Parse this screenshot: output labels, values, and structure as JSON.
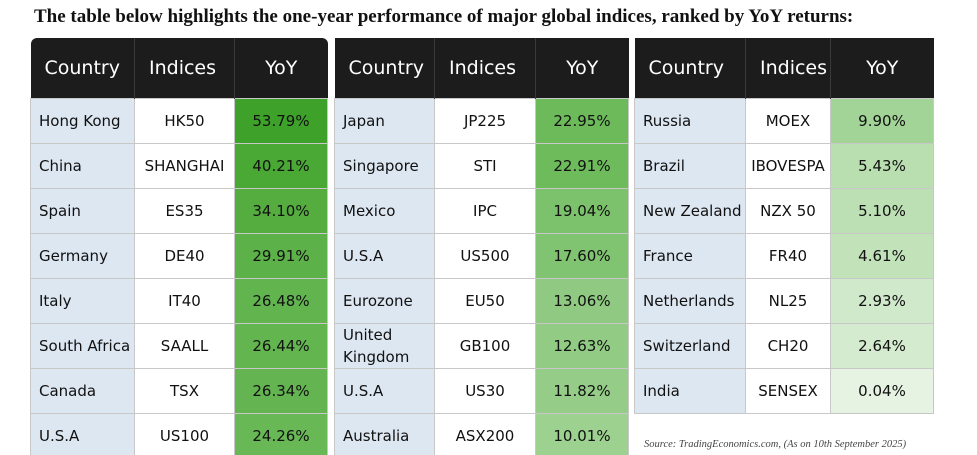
{
  "title": "The table below highlights the one-year performance of major global indices, ranked by YoY returns:",
  "headers": {
    "country": "Country",
    "indices": "Indices",
    "yoy": "YoY"
  },
  "tables": [
    {
      "rows": [
        {
          "country": "Hong Kong",
          "index": "HK50",
          "yoy": "53.79%",
          "color": "#3ea22a"
        },
        {
          "country": "China",
          "index": "SHANGHAI",
          "yoy": "40.21%",
          "color": "#4aa835"
        },
        {
          "country": "Spain",
          "index": "ES35",
          "yoy": "34.10%",
          "color": "#55ad40"
        },
        {
          "country": "Germany",
          "index": "DE40",
          "yoy": "29.91%",
          "color": "#5cb148"
        },
        {
          "country": "Italy",
          "index": "IT40",
          "yoy": "26.48%",
          "color": "#62b44f"
        },
        {
          "country": "South Africa",
          "index": "SAALL",
          "yoy": "26.44%",
          "color": "#63b550"
        },
        {
          "country": "Canada",
          "index": "TSX",
          "yoy": "26.34%",
          "color": "#64b551"
        },
        {
          "country": "U.S.A",
          "index": "US100",
          "yoy": "24.26%",
          "color": "#69b856"
        }
      ]
    },
    {
      "rows": [
        {
          "country": "Japan",
          "index": "JP225",
          "yoy": "22.95%",
          "color": "#6dba5b"
        },
        {
          "country": "Singapore",
          "index": "STI",
          "yoy": "22.91%",
          "color": "#6ebb5c"
        },
        {
          "country": "Mexico",
          "index": "IPC",
          "yoy": "19.04%",
          "color": "#7cc16b"
        },
        {
          "country": "U.S.A",
          "index": "US500",
          "yoy": "17.60%",
          "color": "#80c370"
        },
        {
          "country": "Eurozone",
          "index": "EU50",
          "yoy": "13.06%",
          "color": "#90ca82"
        },
        {
          "country": "United Kingdom",
          "index": "GB100",
          "yoy": "12.63%",
          "color": "#92cb84"
        },
        {
          "country": "U.S.A",
          "index": "US30",
          "yoy": "11.82%",
          "color": "#95cd88"
        },
        {
          "country": "Australia",
          "index": "ASX200",
          "yoy": "10.01%",
          "color": "#9dd190"
        }
      ]
    },
    {
      "rows": [
        {
          "country": "Russia",
          "index": "MOEX",
          "yoy": "9.90%",
          "color": "#a3d497"
        },
        {
          "country": "Brazil",
          "index": "IBOVESPA",
          "yoy": "5.43%",
          "color": "#b9dfb0"
        },
        {
          "country": "New Zealand",
          "index": "NZX 50",
          "yoy": "5.10%",
          "color": "#bce0b3"
        },
        {
          "country": "France",
          "index": "FR40",
          "yoy": "4.61%",
          "color": "#c2e3ba"
        },
        {
          "country": "Netherlands",
          "index": "NL25",
          "yoy": "2.93%",
          "color": "#d1e9cb"
        },
        {
          "country": "Switzerland",
          "index": "CH20",
          "yoy": "2.64%",
          "color": "#d4ebcf"
        },
        {
          "country": "India",
          "index": "SENSEX",
          "yoy": "0.04%",
          "color": "#e6f2e2"
        }
      ]
    }
  ],
  "source": "Source: TradingEconomics.com, (As on 10th September 2025)"
}
